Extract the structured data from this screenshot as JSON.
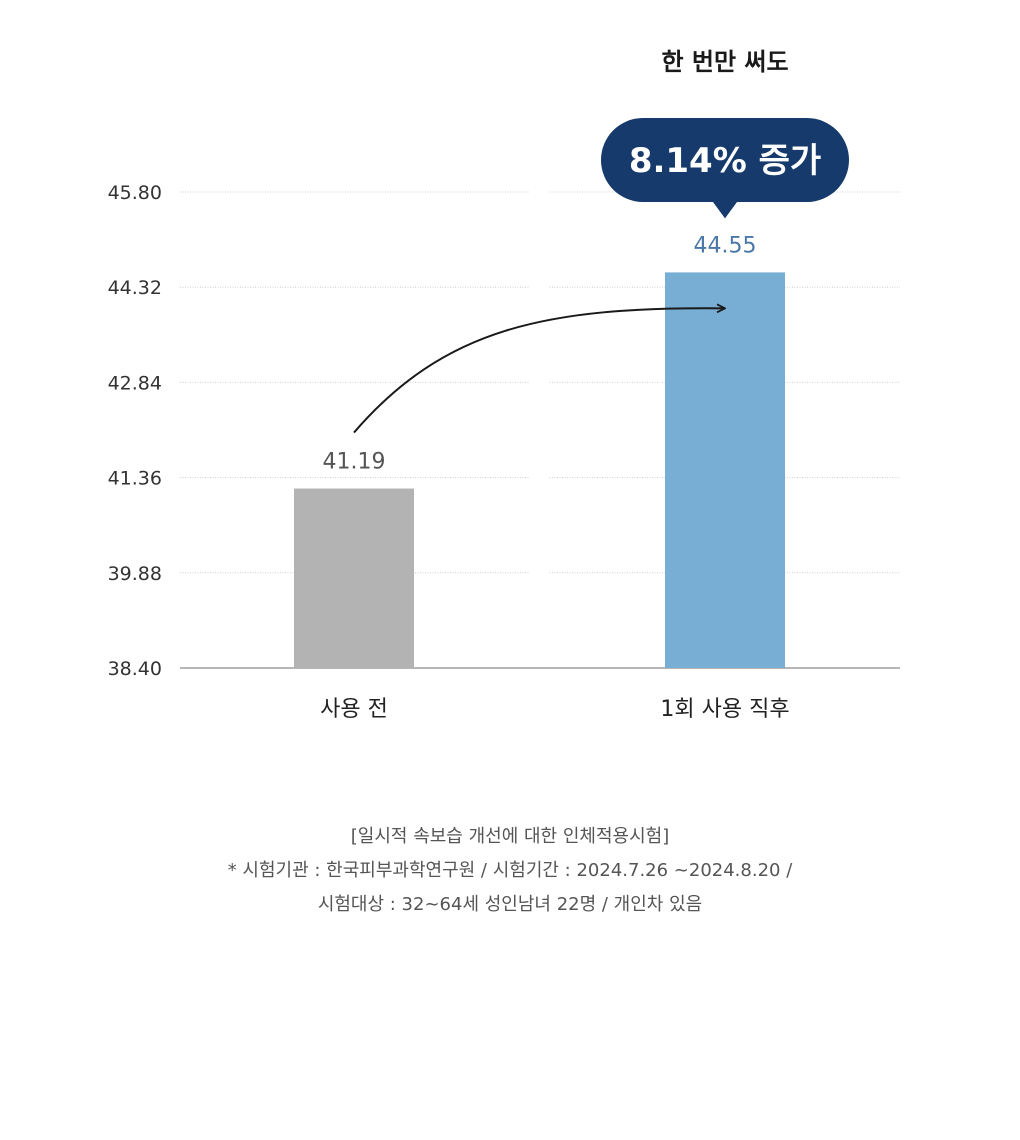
{
  "chart_data": {
    "type": "bar",
    "categories": [
      "사용 전",
      "1회 사용 직후"
    ],
    "values": [
      41.19,
      44.55
    ],
    "value_labels": [
      "41.19",
      "44.55"
    ],
    "y_ticks": [
      "38.40",
      "39.88",
      "41.36",
      "42.84",
      "44.32",
      "45.80"
    ],
    "ylim": [
      38.4,
      45.8
    ],
    "grid": true,
    "bar_colors": [
      "#b3b3b3",
      "#78aed3"
    ],
    "label_colors": [
      "#555555",
      "#4a78a8"
    ],
    "headline": "한 번만 써도",
    "badge": "8.14% 증가",
    "badge_color": "#153a6b",
    "arrow": "from 사용 전 to 1회 사용 직후"
  },
  "footnote": {
    "line1": "[일시적 속보습 개선에 대한 인체적용시험]",
    "line2": "* 시험기관 : 한국피부과학연구원 / 시험기간 : 2024.7.26 ~2024.8.20 /",
    "line3": "시험대상 : 32~64세 성인남녀 22명 / 개인차 있음"
  }
}
